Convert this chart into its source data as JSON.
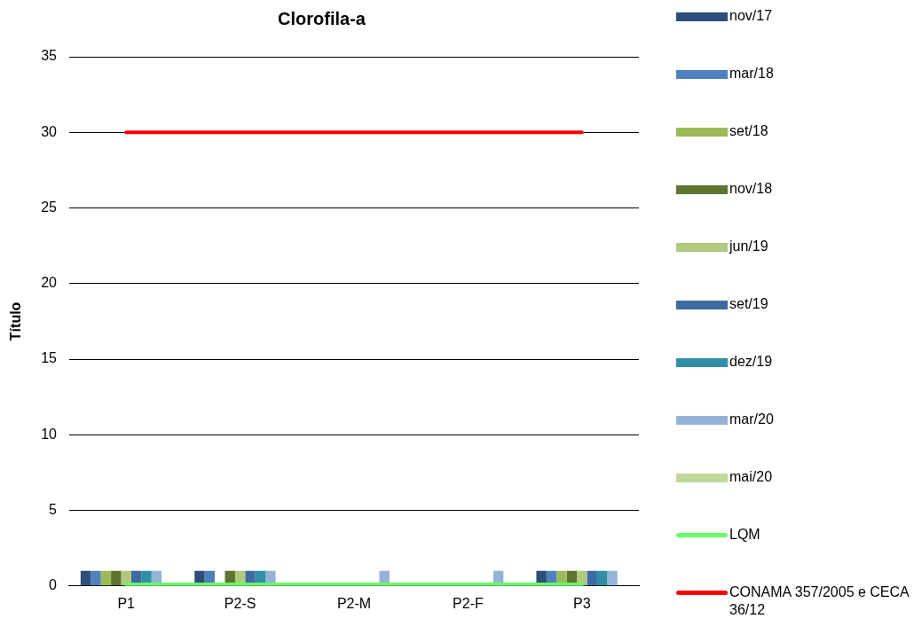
{
  "chart_data": {
    "type": "bar",
    "title": "Clorofila-a",
    "ylabel": "Título",
    "categories": [
      "P1",
      "P2-S",
      "P2-M",
      "P2-F",
      "P3"
    ],
    "series": [
      {
        "name": "nov/17",
        "color": "#2e4e7a",
        "values": [
          1,
          1,
          null,
          null,
          1
        ]
      },
      {
        "name": "mar/18",
        "color": "#4f81bd",
        "values": [
          1,
          1,
          null,
          null,
          1
        ]
      },
      {
        "name": "set/18",
        "color": "#9bbb59",
        "values": [
          1,
          null,
          null,
          null,
          1
        ]
      },
      {
        "name": "nov/18",
        "color": "#5e7430",
        "values": [
          1,
          1,
          null,
          null,
          1
        ]
      },
      {
        "name": "jun/19",
        "color": "#b0c97e",
        "values": [
          1,
          1,
          null,
          null,
          1
        ]
      },
      {
        "name": "set/19",
        "color": "#3c6aa3",
        "values": [
          1,
          1,
          null,
          null,
          1
        ]
      },
      {
        "name": "dez/19",
        "color": "#318ea6",
        "values": [
          1,
          1,
          null,
          null,
          1
        ]
      },
      {
        "name": "mar/20",
        "color": "#95b3d7",
        "values": [
          1,
          1,
          1,
          1,
          1
        ]
      },
      {
        "name": "mai/20",
        "color": "#c4d79b",
        "values": [
          null,
          null,
          null,
          null,
          null
        ]
      },
      {
        "name": "LQM",
        "color": "#66ff66",
        "type": "line",
        "values": [
          0.1,
          0.1,
          0.1,
          0.1,
          0.1
        ]
      },
      {
        "name": "CONAMA 357/2005 e CECA 36/12",
        "color": "#ff0000",
        "type": "line",
        "values": [
          30,
          30,
          30,
          30,
          30
        ]
      }
    ],
    "ylim": [
      0,
      35
    ],
    "yticks": [
      0,
      5,
      10,
      15,
      20,
      25,
      30,
      35
    ],
    "grid": "y",
    "legend": "right"
  }
}
